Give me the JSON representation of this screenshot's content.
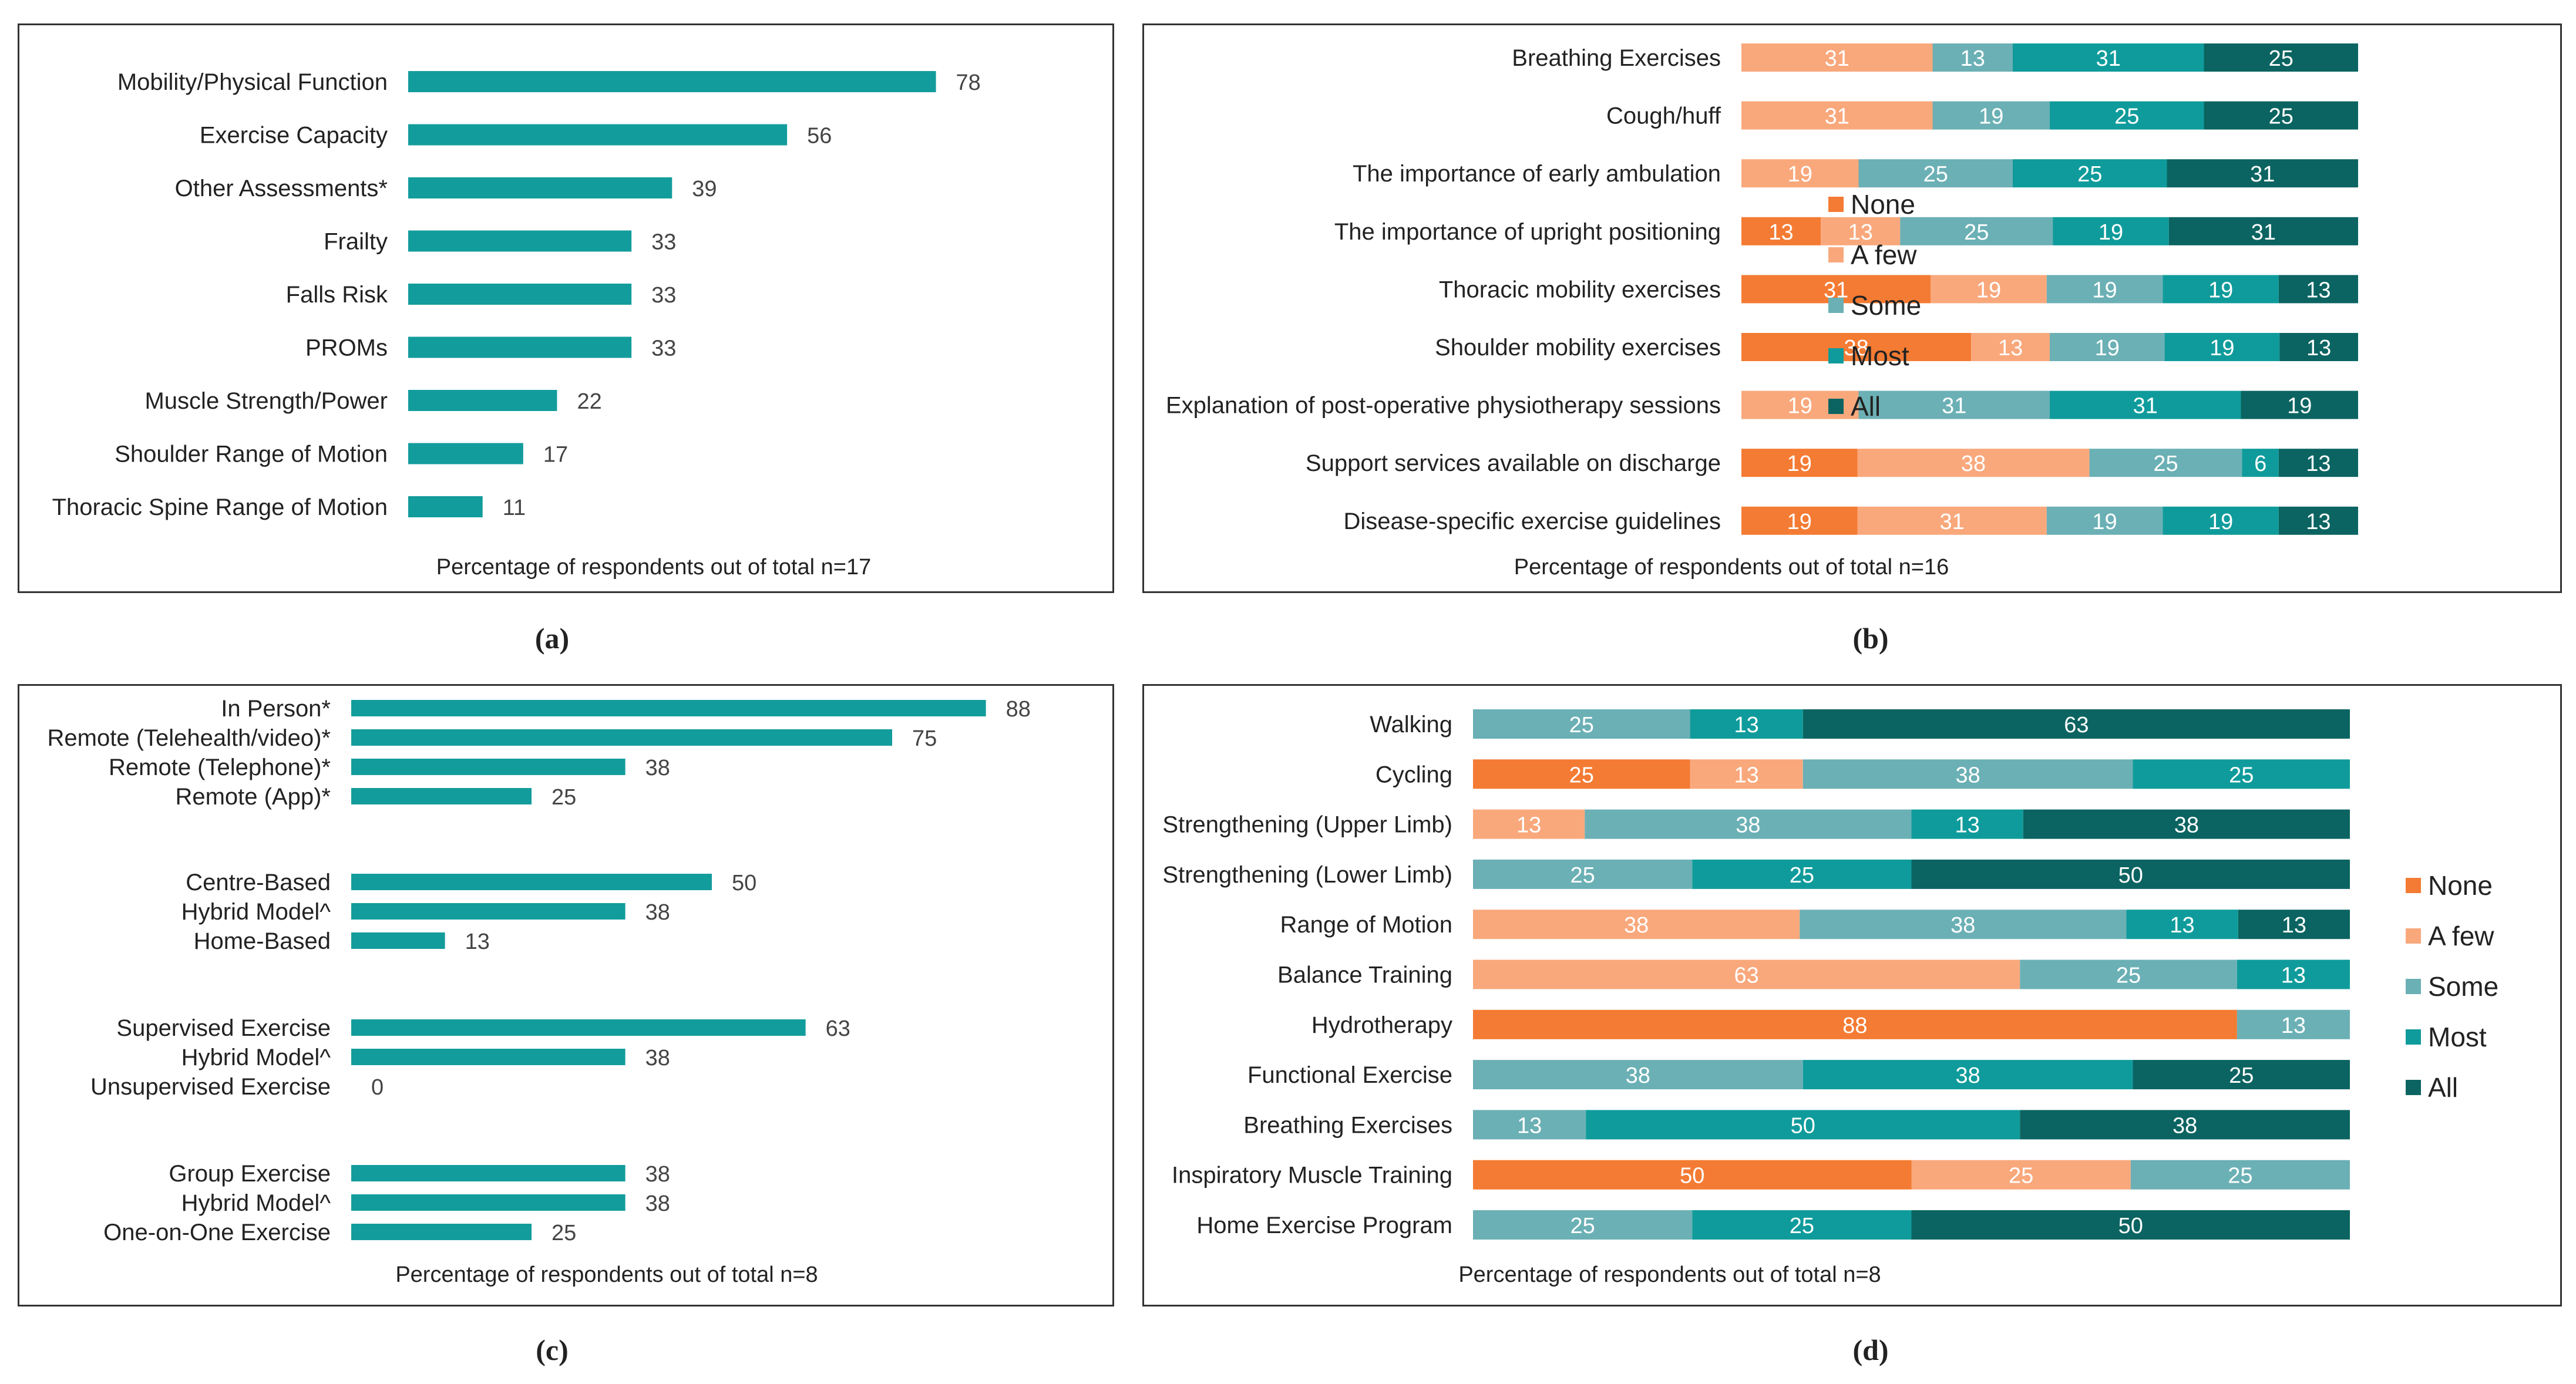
{
  "colors": {
    "teal": "#139c9c",
    "none": "#f47b33",
    "a_few": "#f9a87c",
    "some": "#6bb0b5",
    "most": "#0f9b9b",
    "all": "#0b6461"
  },
  "captions": {
    "a": "(a)",
    "b": "(b)",
    "c": "(c)",
    "d": "(d)"
  },
  "chart_data": [
    {
      "id": "a",
      "type": "bar",
      "orientation": "horizontal",
      "categories": [
        "Mobility/Physical Function",
        "Exercise Capacity",
        "Other Assessments*",
        "Frailty",
        "Falls Risk",
        "PROMs",
        "Muscle Strength/Power",
        "Shoulder Range of Motion",
        "Thoracic Spine Range of Motion"
      ],
      "values": [
        78,
        56,
        39,
        33,
        33,
        33,
        22,
        17,
        11
      ],
      "xlabel": "Percentage of respondents out of total n=17",
      "xlim": [
        0,
        100
      ]
    },
    {
      "id": "b",
      "type": "bar",
      "orientation": "horizontal",
      "stacked": true,
      "categories": [
        "Breathing Exercises",
        "Cough/huff",
        "The importance of early ambulation",
        "The importance of upright positioning",
        "Thoracic mobility exercises",
        "Shoulder mobility exercises",
        "Explanation of post-operative physiotherapy sessions",
        "Support services available on discharge",
        "Disease-specific exercise guidelines"
      ],
      "series": [
        {
          "name": "None",
          "values": [
            0,
            0,
            0,
            13,
            31,
            38,
            0,
            19,
            19
          ]
        },
        {
          "name": "A few",
          "values": [
            31,
            31,
            19,
            13,
            19,
            13,
            19,
            38,
            31
          ]
        },
        {
          "name": "Some",
          "values": [
            13,
            19,
            25,
            25,
            19,
            19,
            31,
            25,
            19
          ]
        },
        {
          "name": "Most",
          "values": [
            31,
            25,
            25,
            19,
            19,
            19,
            31,
            6,
            19
          ]
        },
        {
          "name": "All",
          "values": [
            25,
            25,
            31,
            31,
            13,
            13,
            19,
            13,
            13
          ]
        }
      ],
      "legend": [
        "None",
        "A few",
        "Some",
        "Most",
        "All"
      ],
      "legend_position": "right",
      "xlabel": "Percentage of respondents out of total n=16"
    },
    {
      "id": "c",
      "type": "bar",
      "orientation": "horizontal",
      "groups": [
        {
          "categories": [
            "In Person*",
            "Remote (Telehealth/video)*",
            "Remote (Telephone)*",
            "Remote (App)*"
          ],
          "values": [
            88,
            75,
            38,
            25
          ]
        },
        {
          "categories": [
            "Centre-Based",
            "Hybrid Model^",
            "Home-Based"
          ],
          "values": [
            50,
            38,
            13
          ]
        },
        {
          "categories": [
            "Supervised Exercise",
            "Hybrid Model^",
            "Unsupervised Exercise"
          ],
          "values": [
            63,
            38,
            0
          ]
        },
        {
          "categories": [
            "Group Exercise",
            "Hybrid Model^",
            "One-on-One Exercise"
          ],
          "values": [
            38,
            38,
            25
          ]
        }
      ],
      "xlabel": "Percentage of respondents out of total n=8",
      "xlim": [
        0,
        100
      ]
    },
    {
      "id": "d",
      "type": "bar",
      "orientation": "horizontal",
      "stacked": true,
      "categories": [
        "Walking",
        "Cycling",
        "Strengthening (Upper Limb)",
        "Strengthening (Lower Limb)",
        "Range of Motion",
        "Balance Training",
        "Hydrotherapy",
        "Functional Exercise",
        "Breathing Exercises",
        "Inspiratory Muscle Training",
        "Home Exercise Program"
      ],
      "series": [
        {
          "name": "None",
          "values": [
            0,
            25,
            0,
            0,
            0,
            0,
            88,
            0,
            0,
            50,
            0
          ]
        },
        {
          "name": "A few",
          "values": [
            0,
            13,
            13,
            0,
            38,
            63,
            0,
            0,
            0,
            25,
            0
          ]
        },
        {
          "name": "Some",
          "values": [
            25,
            38,
            38,
            25,
            38,
            25,
            13,
            38,
            13,
            25,
            25
          ]
        },
        {
          "name": "Most",
          "values": [
            13,
            25,
            13,
            25,
            13,
            13,
            0,
            38,
            50,
            0,
            25
          ]
        },
        {
          "name": "All",
          "values": [
            63,
            0,
            38,
            50,
            13,
            0,
            0,
            25,
            38,
            0,
            50
          ]
        }
      ],
      "legend": [
        "None",
        "A few",
        "Some",
        "Most",
        "All"
      ],
      "legend_position": "right",
      "xlabel": "Percentage of respondents out of total n=8"
    }
  ]
}
